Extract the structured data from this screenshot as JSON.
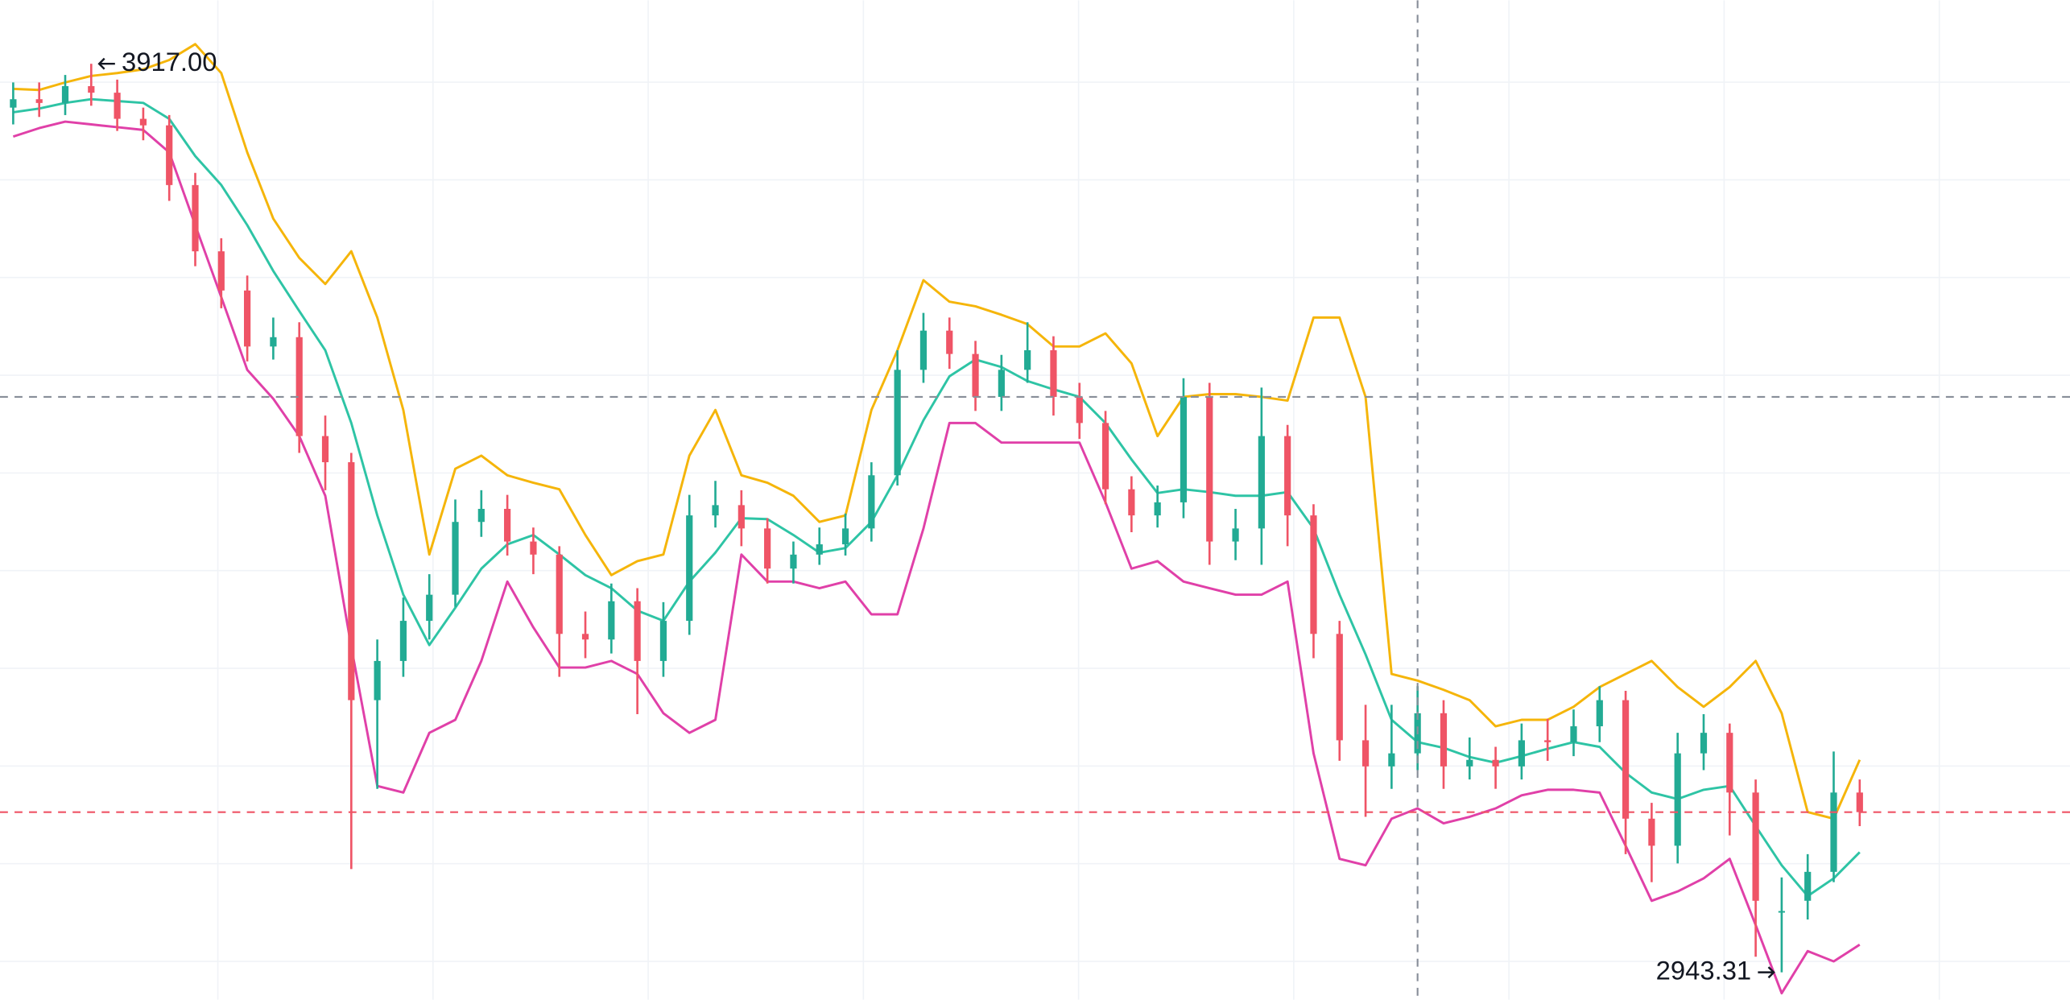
{
  "chart_data": {
    "type": "candlestick",
    "ylim": [
      2914,
      3985
    ],
    "grid": true,
    "up_color": "#22ab94",
    "down_color": "#ef5466",
    "candles": {
      "open": [
        3870,
        3879,
        3875,
        3893,
        3886,
        3858,
        3851,
        3787,
        3716,
        3674,
        3614,
        3624,
        3518,
        3490,
        3235,
        3277,
        3320,
        3348,
        3426,
        3440,
        3405,
        3391,
        3306,
        3300,
        3341,
        3277,
        3320,
        3433,
        3444,
        3419,
        3376,
        3391,
        3402,
        3419,
        3476,
        3589,
        3631,
        3606,
        3560,
        3589,
        3610,
        3560,
        3532,
        3461,
        3433,
        3447,
        3560,
        3405,
        3419,
        3518,
        3433,
        3306,
        3192,
        3164,
        3178,
        3221,
        3164,
        3171,
        3164,
        3192,
        3190,
        3207,
        3235,
        3108,
        3079,
        3178,
        3200,
        3136,
        3009,
        3020,
        3051,
        3136
      ],
      "high": [
        3897,
        3897,
        3905,
        3917,
        3900,
        3870,
        3862,
        3800,
        3730,
        3690,
        3645,
        3640,
        3540,
        3500,
        3300,
        3345,
        3370,
        3450,
        3460,
        3455,
        3420,
        3400,
        3330,
        3360,
        3355,
        3340,
        3455,
        3470,
        3460,
        3430,
        3405,
        3420,
        3435,
        3490,
        3610,
        3650,
        3645,
        3620,
        3605,
        3640,
        3625,
        3575,
        3545,
        3475,
        3465,
        3580,
        3575,
        3440,
        3570,
        3530,
        3445,
        3320,
        3230,
        3230,
        3250,
        3235,
        3195,
        3185,
        3210,
        3215,
        3225,
        3250,
        3245,
        3125,
        3200,
        3220,
        3210,
        3150,
        3045,
        3070,
        3180,
        3150
      ],
      "low": [
        3852,
        3860,
        3862,
        3872,
        3845,
        3835,
        3770,
        3700,
        3655,
        3598,
        3600,
        3500,
        3460,
        3054,
        3140,
        3260,
        3300,
        3335,
        3410,
        3390,
        3370,
        3260,
        3280,
        3285,
        3220,
        3260,
        3305,
        3420,
        3400,
        3360,
        3360,
        3380,
        3390,
        3405,
        3465,
        3575,
        3590,
        3545,
        3545,
        3575,
        3540,
        3515,
        3445,
        3415,
        3420,
        3430,
        3380,
        3385,
        3380,
        3400,
        3280,
        3170,
        3110,
        3140,
        3160,
        3140,
        3150,
        3140,
        3150,
        3170,
        3175,
        3190,
        3070,
        3040,
        3060,
        3160,
        3090,
        2960,
        2943.31,
        3000,
        3040,
        3100
      ],
      "close": [
        3879,
        3875,
        3893,
        3886,
        3858,
        3851,
        3787,
        3716,
        3674,
        3614,
        3624,
        3518,
        3490,
        3235,
        3277,
        3320,
        3348,
        3426,
        3440,
        3405,
        3391,
        3306,
        3300,
        3341,
        3277,
        3320,
        3433,
        3444,
        3419,
        3376,
        3391,
        3402,
        3419,
        3476,
        3589,
        3631,
        3606,
        3560,
        3589,
        3610,
        3560,
        3532,
        3461,
        3433,
        3447,
        3560,
        3405,
        3419,
        3518,
        3433,
        3306,
        3192,
        3164,
        3178,
        3221,
        3164,
        3171,
        3164,
        3192,
        3190,
        3207,
        3235,
        3108,
        3079,
        3178,
        3200,
        3136,
        3020,
        3009,
        3051,
        3136,
        3115
      ]
    },
    "series": [
      {
        "color": "#f5b50a",
        "values": [
          3890,
          3889,
          3897,
          3904,
          3907,
          3911,
          3921,
          3938,
          3907,
          3822,
          3751,
          3709,
          3681,
          3716,
          3645,
          3546,
          3391,
          3483,
          3497,
          3476,
          3468,
          3461,
          3412,
          3369,
          3384,
          3391,
          3497,
          3546,
          3476,
          3468,
          3454,
          3426,
          3433,
          3546,
          3610,
          3685,
          3662,
          3657,
          3648,
          3638,
          3614,
          3614,
          3628,
          3596,
          3518,
          3560,
          3563,
          3563,
          3560,
          3556,
          3645,
          3645,
          3560,
          3263,
          3256,
          3246,
          3235,
          3207,
          3214,
          3214,
          3228,
          3249,
          3263,
          3277,
          3249,
          3228,
          3249,
          3277,
          3221,
          3115,
          3108,
          3171
        ]
      },
      {
        "color": "#2ec4a5",
        "values": [
          3865,
          3869,
          3875,
          3879,
          3877,
          3875,
          3858,
          3818,
          3787,
          3744,
          3695,
          3652,
          3610,
          3532,
          3433,
          3348,
          3294,
          3334,
          3376,
          3402,
          3412,
          3391,
          3369,
          3355,
          3331,
          3320,
          3362,
          3393,
          3430,
          3429,
          3412,
          3393,
          3398,
          3426,
          3476,
          3535,
          3582,
          3600,
          3592,
          3577,
          3568,
          3560,
          3532,
          3493,
          3457,
          3461,
          3458,
          3454,
          3454,
          3458,
          3419,
          3348,
          3284,
          3214,
          3190,
          3184,
          3174,
          3168,
          3175,
          3183,
          3190,
          3185,
          3157,
          3136,
          3129,
          3139,
          3143,
          3100,
          3058,
          3025,
          3044,
          3072
        ]
      },
      {
        "color": "#e040a8",
        "values": [
          3839,
          3848,
          3855,
          3852,
          3849,
          3846,
          3822,
          3744,
          3667,
          3589,
          3558,
          3518,
          3454,
          3292,
          3143,
          3136,
          3200,
          3214,
          3277,
          3362,
          3313,
          3270,
          3270,
          3277,
          3263,
          3221,
          3200,
          3214,
          3391,
          3362,
          3362,
          3355,
          3362,
          3327,
          3327,
          3419,
          3532,
          3532,
          3511,
          3511,
          3511,
          3511,
          3447,
          3376,
          3384,
          3362,
          3355,
          3348,
          3348,
          3362,
          3178,
          3065,
          3058,
          3108,
          3119,
          3103,
          3110,
          3119,
          3133,
          3139,
          3139,
          3136,
          3079,
          3020,
          3030,
          3044,
          3065,
          2994,
          2921,
          2966,
          2955,
          2973
        ]
      }
    ],
    "crosshair": {
      "candle": 54,
      "price": 3560
    },
    "extremes": {
      "high_label": "3917.00",
      "low_label": "2943.31"
    }
  }
}
